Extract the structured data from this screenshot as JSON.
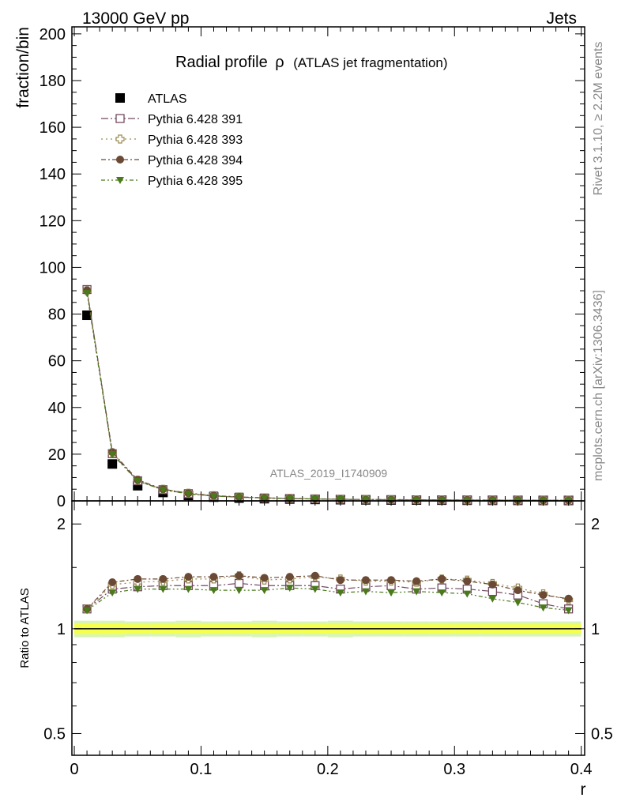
{
  "header": {
    "left": "13000 GeV pp",
    "right": "Jets"
  },
  "watermark": "ATLAS_2019_I1740909",
  "side_labels": {
    "top": "Rivet 3.1.10, ≥ 2.2M events",
    "bottom": "mcplots.cern.ch [arXiv:1306.3436]"
  },
  "chart_data": [
    {
      "type": "line",
      "title": "Radial profile",
      "title_symbol": "ρ",
      "subtitle": "(ATLAS jet fragmentation)",
      "xlabel": "r",
      "ylabel": "fraction/bin",
      "xlim": [
        -0.0019,
        0.4027
      ],
      "ylim": [
        0,
        203
      ],
      "x_ticks": [
        "0",
        "0.1",
        "0.2",
        "0.3",
        "0.4"
      ],
      "x_tick_values": [
        0,
        0.1,
        0.2,
        0.3,
        0.4
      ],
      "y_ticks": [
        "0",
        "20",
        "40",
        "60",
        "80",
        "100",
        "120",
        "140",
        "160",
        "180",
        "200"
      ],
      "y_tick_values": [
        0,
        20,
        40,
        60,
        80,
        100,
        120,
        140,
        160,
        180,
        200
      ],
      "legend_position": "top-left",
      "x": [
        0.01,
        0.03,
        0.05,
        0.07,
        0.09,
        0.11,
        0.13,
        0.15,
        0.17,
        0.19,
        0.21,
        0.23,
        0.25,
        0.27,
        0.29,
        0.31,
        0.33,
        0.35,
        0.37,
        0.39
      ],
      "series": [
        {
          "name": "ATLAS",
          "color": "#000000",
          "marker": "filled-square",
          "values": [
            79.5,
            15.8,
            6.5,
            3.6,
            2.3,
            1.6,
            1.2,
            0.95,
            0.78,
            0.62,
            0.52,
            0.44,
            0.38,
            0.34,
            0.3,
            0.27,
            0.25,
            0.23,
            0.21,
            0.2
          ]
        },
        {
          "name": "Pythia 6.428 391",
          "color": "#734a61",
          "marker": "open-square",
          "values": [
            90.5,
            20.2,
            8.6,
            4.8,
            3.1,
            2.1,
            1.6,
            1.25,
            1.02,
            0.82,
            0.68,
            0.58,
            0.5,
            0.44,
            0.39,
            0.35,
            0.32,
            0.29,
            0.26,
            0.24
          ]
        },
        {
          "name": "Pythia 6.428 393",
          "color": "#9b8a52",
          "marker": "open-cross",
          "values": [
            90.0,
            20.6,
            8.9,
            5.0,
            3.3,
            2.25,
            1.7,
            1.3,
            1.08,
            0.88,
            0.73,
            0.61,
            0.53,
            0.47,
            0.42,
            0.37,
            0.34,
            0.31,
            0.28,
            0.26
          ]
        },
        {
          "name": "Pythia 6.428 394",
          "color": "#6b4a35",
          "marker": "filled-circle",
          "values": [
            90.2,
            20.9,
            9.0,
            5.0,
            3.3,
            2.25,
            1.7,
            1.3,
            1.1,
            0.88,
            0.72,
            0.61,
            0.53,
            0.47,
            0.42,
            0.37,
            0.34,
            0.3,
            0.27,
            0.25
          ]
        },
        {
          "name": "Pythia 6.428 395",
          "color": "#4a7a1c",
          "marker": "filled-triangle-down",
          "values": [
            89.0,
            19.9,
            8.5,
            4.7,
            3.0,
            2.05,
            1.55,
            1.22,
            1.0,
            0.8,
            0.66,
            0.57,
            0.48,
            0.43,
            0.38,
            0.34,
            0.31,
            0.28,
            0.25,
            0.23
          ]
        }
      ]
    },
    {
      "type": "line",
      "title": "",
      "xlabel": "r",
      "ylabel": "Ratio to ATLAS",
      "xlim": [
        -0.0019,
        0.4027
      ],
      "ylim": [
        0.433,
        2.33
      ],
      "y_scale": "log",
      "y_ticks": [
        "0.5",
        "1",
        "2"
      ],
      "y_tick_values": [
        0.5,
        1,
        2
      ],
      "reference_line": 1,
      "band_inner_color": "#f5ff4d",
      "band_outer_color": "#d8f5b6",
      "x": [
        0.01,
        0.03,
        0.05,
        0.07,
        0.09,
        0.11,
        0.13,
        0.15,
        0.17,
        0.19,
        0.21,
        0.23,
        0.25,
        0.27,
        0.29,
        0.31,
        0.33,
        0.35,
        0.37,
        0.39
      ],
      "band_inner": [
        0.035,
        0.035,
        0.03,
        0.03,
        0.03,
        0.03,
        0.03,
        0.03,
        0.03,
        0.03,
        0.03,
        0.03,
        0.03,
        0.03,
        0.03,
        0.03,
        0.03,
        0.03,
        0.03,
        0.03
      ],
      "band_outer": [
        0.055,
        0.055,
        0.05,
        0.05,
        0.055,
        0.05,
        0.05,
        0.055,
        0.05,
        0.05,
        0.055,
        0.05,
        0.05,
        0.05,
        0.05,
        0.05,
        0.05,
        0.05,
        0.05,
        0.05
      ],
      "series": [
        {
          "name": "Pythia 6.428 391",
          "color": "#734a61",
          "marker": "open-square",
          "values": [
            1.14,
            1.3,
            1.32,
            1.33,
            1.33,
            1.33,
            1.35,
            1.33,
            1.33,
            1.33,
            1.3,
            1.32,
            1.33,
            1.3,
            1.31,
            1.3,
            1.28,
            1.25,
            1.18,
            1.14
          ]
        },
        {
          "name": "Pythia 6.428 393",
          "color": "#9b8a52",
          "marker": "open-cross",
          "values": [
            1.14,
            1.34,
            1.36,
            1.37,
            1.39,
            1.39,
            1.42,
            1.38,
            1.39,
            1.41,
            1.39,
            1.37,
            1.37,
            1.36,
            1.39,
            1.38,
            1.35,
            1.31,
            1.26,
            1.21
          ]
        },
        {
          "name": "Pythia 6.428 394",
          "color": "#6b4a35",
          "marker": "filled-circle",
          "values": [
            1.14,
            1.36,
            1.39,
            1.39,
            1.41,
            1.41,
            1.42,
            1.4,
            1.41,
            1.42,
            1.38,
            1.38,
            1.38,
            1.37,
            1.39,
            1.37,
            1.34,
            1.29,
            1.25,
            1.22
          ]
        },
        {
          "name": "Pythia 6.428 395",
          "color": "#4a7a1c",
          "marker": "filled-triangle-down",
          "values": [
            1.13,
            1.27,
            1.3,
            1.3,
            1.3,
            1.29,
            1.29,
            1.29,
            1.31,
            1.3,
            1.27,
            1.28,
            1.27,
            1.28,
            1.27,
            1.26,
            1.22,
            1.19,
            1.15,
            1.13
          ]
        }
      ]
    }
  ]
}
